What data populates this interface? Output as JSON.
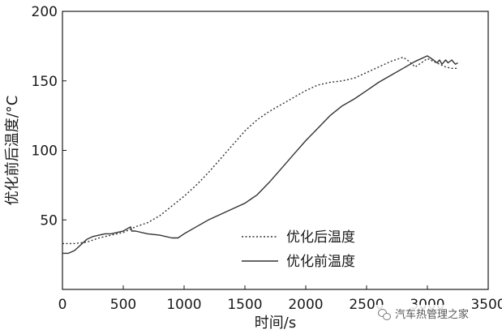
{
  "chart_data": {
    "type": "line",
    "title": "",
    "xlabel": "时间/s",
    "ylabel": "优化前后温度/°C",
    "xlim": [
      0,
      3500
    ],
    "ylim": [
      0,
      200
    ],
    "xticks": [
      0,
      500,
      1000,
      1500,
      2000,
      2500,
      3000,
      3500
    ],
    "yticks": [
      50,
      100,
      150,
      200
    ],
    "grid": false,
    "legend_position": "bottom-right",
    "series": [
      {
        "name": "优化后温度",
        "style": "dotted",
        "color": "#333333",
        "x": [
          0,
          100,
          200,
          300,
          400,
          500,
          550,
          600,
          700,
          800,
          900,
          1000,
          1100,
          1200,
          1300,
          1400,
          1500,
          1600,
          1700,
          1800,
          1900,
          2000,
          2100,
          2200,
          2300,
          2400,
          2500,
          2600,
          2700,
          2800,
          2850,
          2900,
          2950,
          3000,
          3050,
          3100,
          3150,
          3200,
          3250
        ],
        "y": [
          33,
          33,
          34,
          37,
          39,
          41,
          43,
          45,
          48,
          53,
          60,
          67,
          75,
          84,
          94,
          104,
          114,
          122,
          128,
          133,
          138,
          143,
          147,
          149,
          150,
          152,
          156,
          160,
          164,
          167,
          164,
          160,
          163,
          166,
          164,
          162,
          160,
          159,
          159
        ]
      },
      {
        "name": "优化前温度",
        "style": "solid",
        "color": "#333333",
        "x": [
          0,
          50,
          100,
          150,
          200,
          250,
          300,
          350,
          400,
          450,
          500,
          560,
          570,
          600,
          700,
          800,
          900,
          950,
          1000,
          1100,
          1200,
          1300,
          1400,
          1500,
          1550,
          1600,
          1700,
          1800,
          1900,
          2000,
          2100,
          2200,
          2300,
          2400,
          2500,
          2600,
          2700,
          2800,
          2900,
          3000,
          3050,
          3080,
          3100,
          3120,
          3150,
          3170,
          3200,
          3230,
          3250
        ],
        "y": [
          26,
          26,
          28,
          32,
          36,
          38,
          39,
          40,
          40,
          41,
          42,
          45,
          42,
          42,
          40,
          39,
          37,
          37,
          40,
          45,
          50,
          54,
          58,
          62,
          65,
          68,
          77,
          87,
          97,
          107,
          116,
          125,
          132,
          137,
          143,
          149,
          154,
          159,
          164,
          168,
          165,
          163,
          165,
          162,
          165,
          163,
          165,
          162,
          163
        ]
      }
    ]
  },
  "watermark": {
    "icon": "wechat-icon",
    "text": "汽车热管理之家"
  }
}
